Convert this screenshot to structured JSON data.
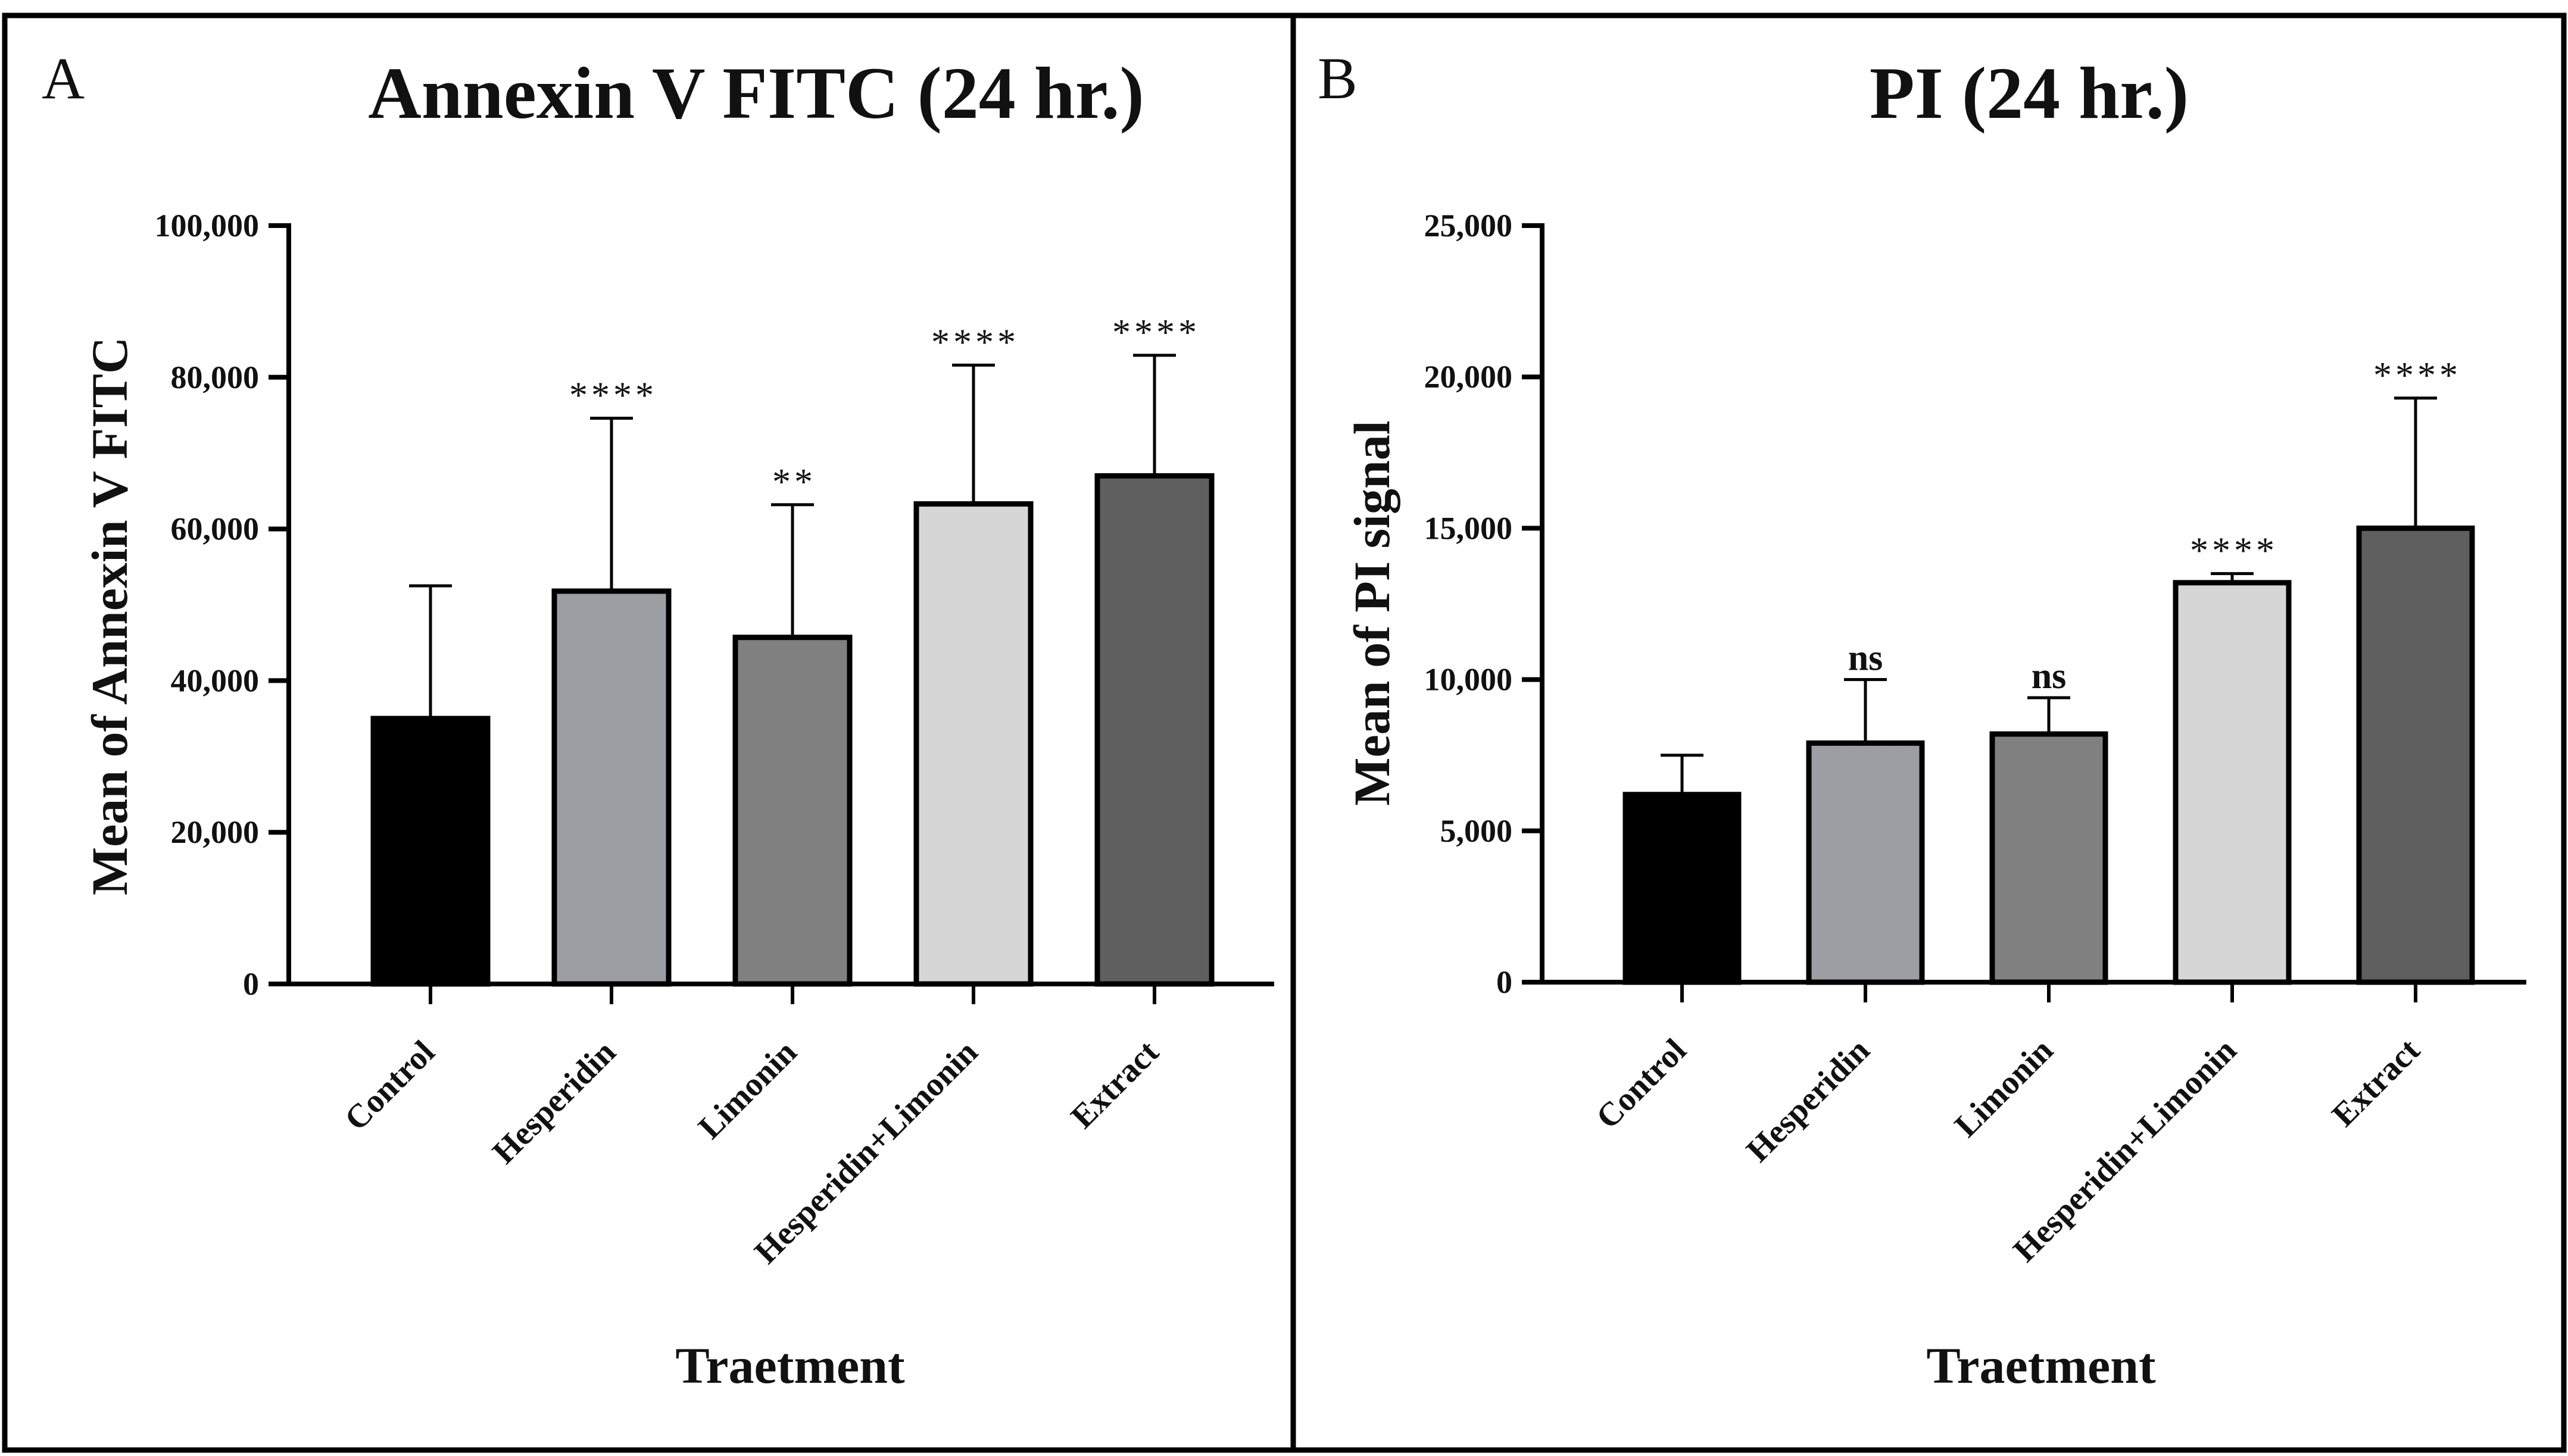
{
  "chart_data": [
    {
      "type": "bar",
      "panel": "A",
      "title": "Annexin V FITC (24 hr.)",
      "xlabel": "Traetment",
      "ylabel": "Mean of Annexin V FITC",
      "ylim": [
        0,
        100000
      ],
      "yticks": [
        0,
        20000,
        40000,
        60000,
        80000,
        100000
      ],
      "ytick_labels": [
        "0",
        "20,000",
        "40,000",
        "60,000",
        "80,000",
        "100,000"
      ],
      "categories": [
        "Control",
        "Hesperidin",
        "Limonin",
        "Hesperidin+Limonin",
        "Extract"
      ],
      "values": [
        35000,
        51800,
        45700,
        63300,
        67000
      ],
      "errors": [
        17500,
        22800,
        17500,
        18300,
        15900
      ],
      "significance": [
        "",
        "****",
        "**",
        "****",
        "****"
      ],
      "bar_colors": [
        "#000000",
        "#9c9ea4",
        "#808080",
        "#d6d6d6",
        "#5f5f5f"
      ],
      "grid": false
    },
    {
      "type": "bar",
      "panel": "B",
      "title": "PI (24 hr.)",
      "xlabel": "Traetment",
      "ylabel": "Mean of PI signal",
      "ylim": [
        0,
        25000
      ],
      "yticks": [
        0,
        5000,
        10000,
        15000,
        20000,
        25000
      ],
      "ytick_labels": [
        "0",
        "5,000",
        "10,000",
        "15,000",
        "20,000",
        "25,000"
      ],
      "categories": [
        "Control",
        "Hesperidin",
        "Limonin",
        "Hesperidin+Limonin",
        "Extract"
      ],
      "values": [
        6200,
        7900,
        8200,
        13200,
        15000
      ],
      "errors": [
        1300,
        2100,
        1200,
        300,
        4300
      ],
      "significance": [
        "",
        "ns",
        "ns",
        "****",
        "****"
      ],
      "bar_colors": [
        "#000000",
        "#9c9ea4",
        "#808080",
        "#d6d6d6",
        "#5f5f5f"
      ],
      "grid": false
    }
  ]
}
